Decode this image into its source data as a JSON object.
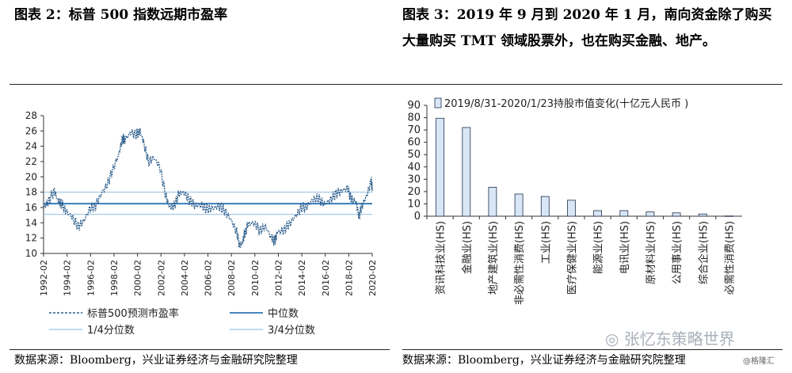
{
  "left_title": "图表 2：标普 500 指数远期市盈率",
  "right_title": "图表 3：2019 年 9 月到 2020 年 1 月，南向资金除了购买大量购买 TMT 领域股票外，也在购买金融、地产。",
  "left_source": "数据来源：Bloomberg，兴业证券经济与金融研究院整理",
  "right_source": "数据来源：Bloomberg，兴业证券经济与金融研究院整理",
  "watermark": "张忆东策略世界",
  "watermark_small": "@格隆汇",
  "colors": {
    "series": "#2b5c8a",
    "median": "#2e75b6",
    "quartile": "#9dc3e6",
    "bar_fill": "#d9e6f5",
    "bar_edge": "#1f2f4f"
  },
  "chart_data": [
    {
      "type": "line",
      "ylim": [
        10,
        28
      ],
      "yticks": [
        "10",
        "12",
        "14",
        "16",
        "18",
        "20",
        "22",
        "24",
        "26",
        "28"
      ],
      "xticks": [
        "1992-02",
        "1994-02",
        "1996-02",
        "1998-02",
        "2000-02",
        "2002-02",
        "2004-02",
        "2006-02",
        "2008-02",
        "2010-02",
        "2012-02",
        "2014-02",
        "2016-02",
        "2018-02",
        "2020-02"
      ],
      "xrange": [
        1992.08,
        2020.08
      ],
      "series": [
        {
          "name": "标普500预测市盈率",
          "style": "dashed",
          "x": [
            1992.1,
            1992.5,
            1993.0,
            1993.3,
            1993.6,
            1994.0,
            1994.5,
            1995.0,
            1995.5,
            1996.0,
            1996.5,
            1997.0,
            1997.5,
            1998.0,
            1998.5,
            1998.8,
            1999.0,
            1999.5,
            2000.0,
            2000.3,
            2000.6,
            2001.0,
            2001.5,
            2002.0,
            2002.5,
            2002.8,
            2003.2,
            2003.6,
            2004.0,
            2004.5,
            2005.0,
            2005.5,
            2006.0,
            2006.5,
            2007.0,
            2007.5,
            2008.0,
            2008.5,
            2008.8,
            2009.0,
            2009.2,
            2009.5,
            2010.0,
            2010.5,
            2011.0,
            2011.5,
            2011.8,
            2012.0,
            2012.5,
            2013.0,
            2013.5,
            2014.0,
            2014.5,
            2015.0,
            2015.5,
            2016.0,
            2016.5,
            2017.0,
            2017.5,
            2018.0,
            2018.3,
            2018.7,
            2018.95,
            2019.2,
            2019.6,
            2020.0,
            2020.08
          ],
          "values": [
            16.0,
            16.8,
            18.2,
            16.9,
            16.5,
            15.5,
            14.8,
            13.5,
            14.2,
            15.8,
            16.2,
            17.8,
            19.0,
            21.0,
            23.0,
            25.0,
            24.8,
            25.8,
            25.5,
            26.0,
            24.5,
            22.0,
            22.5,
            21.2,
            17.5,
            16.0,
            16.2,
            17.8,
            18.0,
            17.0,
            16.2,
            16.3,
            15.8,
            15.9,
            16.2,
            15.6,
            14.5,
            13.0,
            11.0,
            11.4,
            12.5,
            13.8,
            14.0,
            13.0,
            13.5,
            12.0,
            11.6,
            12.8,
            13.0,
            13.8,
            14.8,
            15.9,
            16.1,
            17.0,
            17.2,
            16.4,
            17.0,
            17.8,
            18.2,
            18.5,
            17.0,
            16.8,
            14.8,
            16.2,
            17.5,
            19.5,
            18.5
          ]
        },
        {
          "name": "中位数",
          "style": "solid",
          "constant": 16.5
        },
        {
          "name": "1/4分位数",
          "style": "solid",
          "constant": 15.1
        },
        {
          "name": "3/4分位数",
          "style": "solid",
          "constant": 18.0
        }
      ]
    },
    {
      "type": "bar",
      "ylim": [
        0,
        90
      ],
      "yticks": [
        "0",
        "10",
        "20",
        "30",
        "40",
        "50",
        "60",
        "70",
        "80",
        "90"
      ],
      "categories": [
        "资讯科技业(HS)",
        "金融业(HS)",
        "地产建筑业(HS)",
        "非必需性消费(HS)",
        "工业(HS)",
        "医疗保健业(HS)",
        "能源业(HS)",
        "电讯业(HS)",
        "原材料业(HS)",
        "公用事业(HS)",
        "综合企业(HS)",
        "必需性消费(HS)"
      ],
      "series": [
        {
          "name": "2019/8/31-2020/1/23持股市值变化(十亿元人民币 )",
          "values": [
            79.5,
            72,
            23.5,
            18,
            16,
            13,
            4.5,
            4.5,
            3.5,
            2.7,
            1.8,
            0.2
          ]
        }
      ]
    }
  ]
}
